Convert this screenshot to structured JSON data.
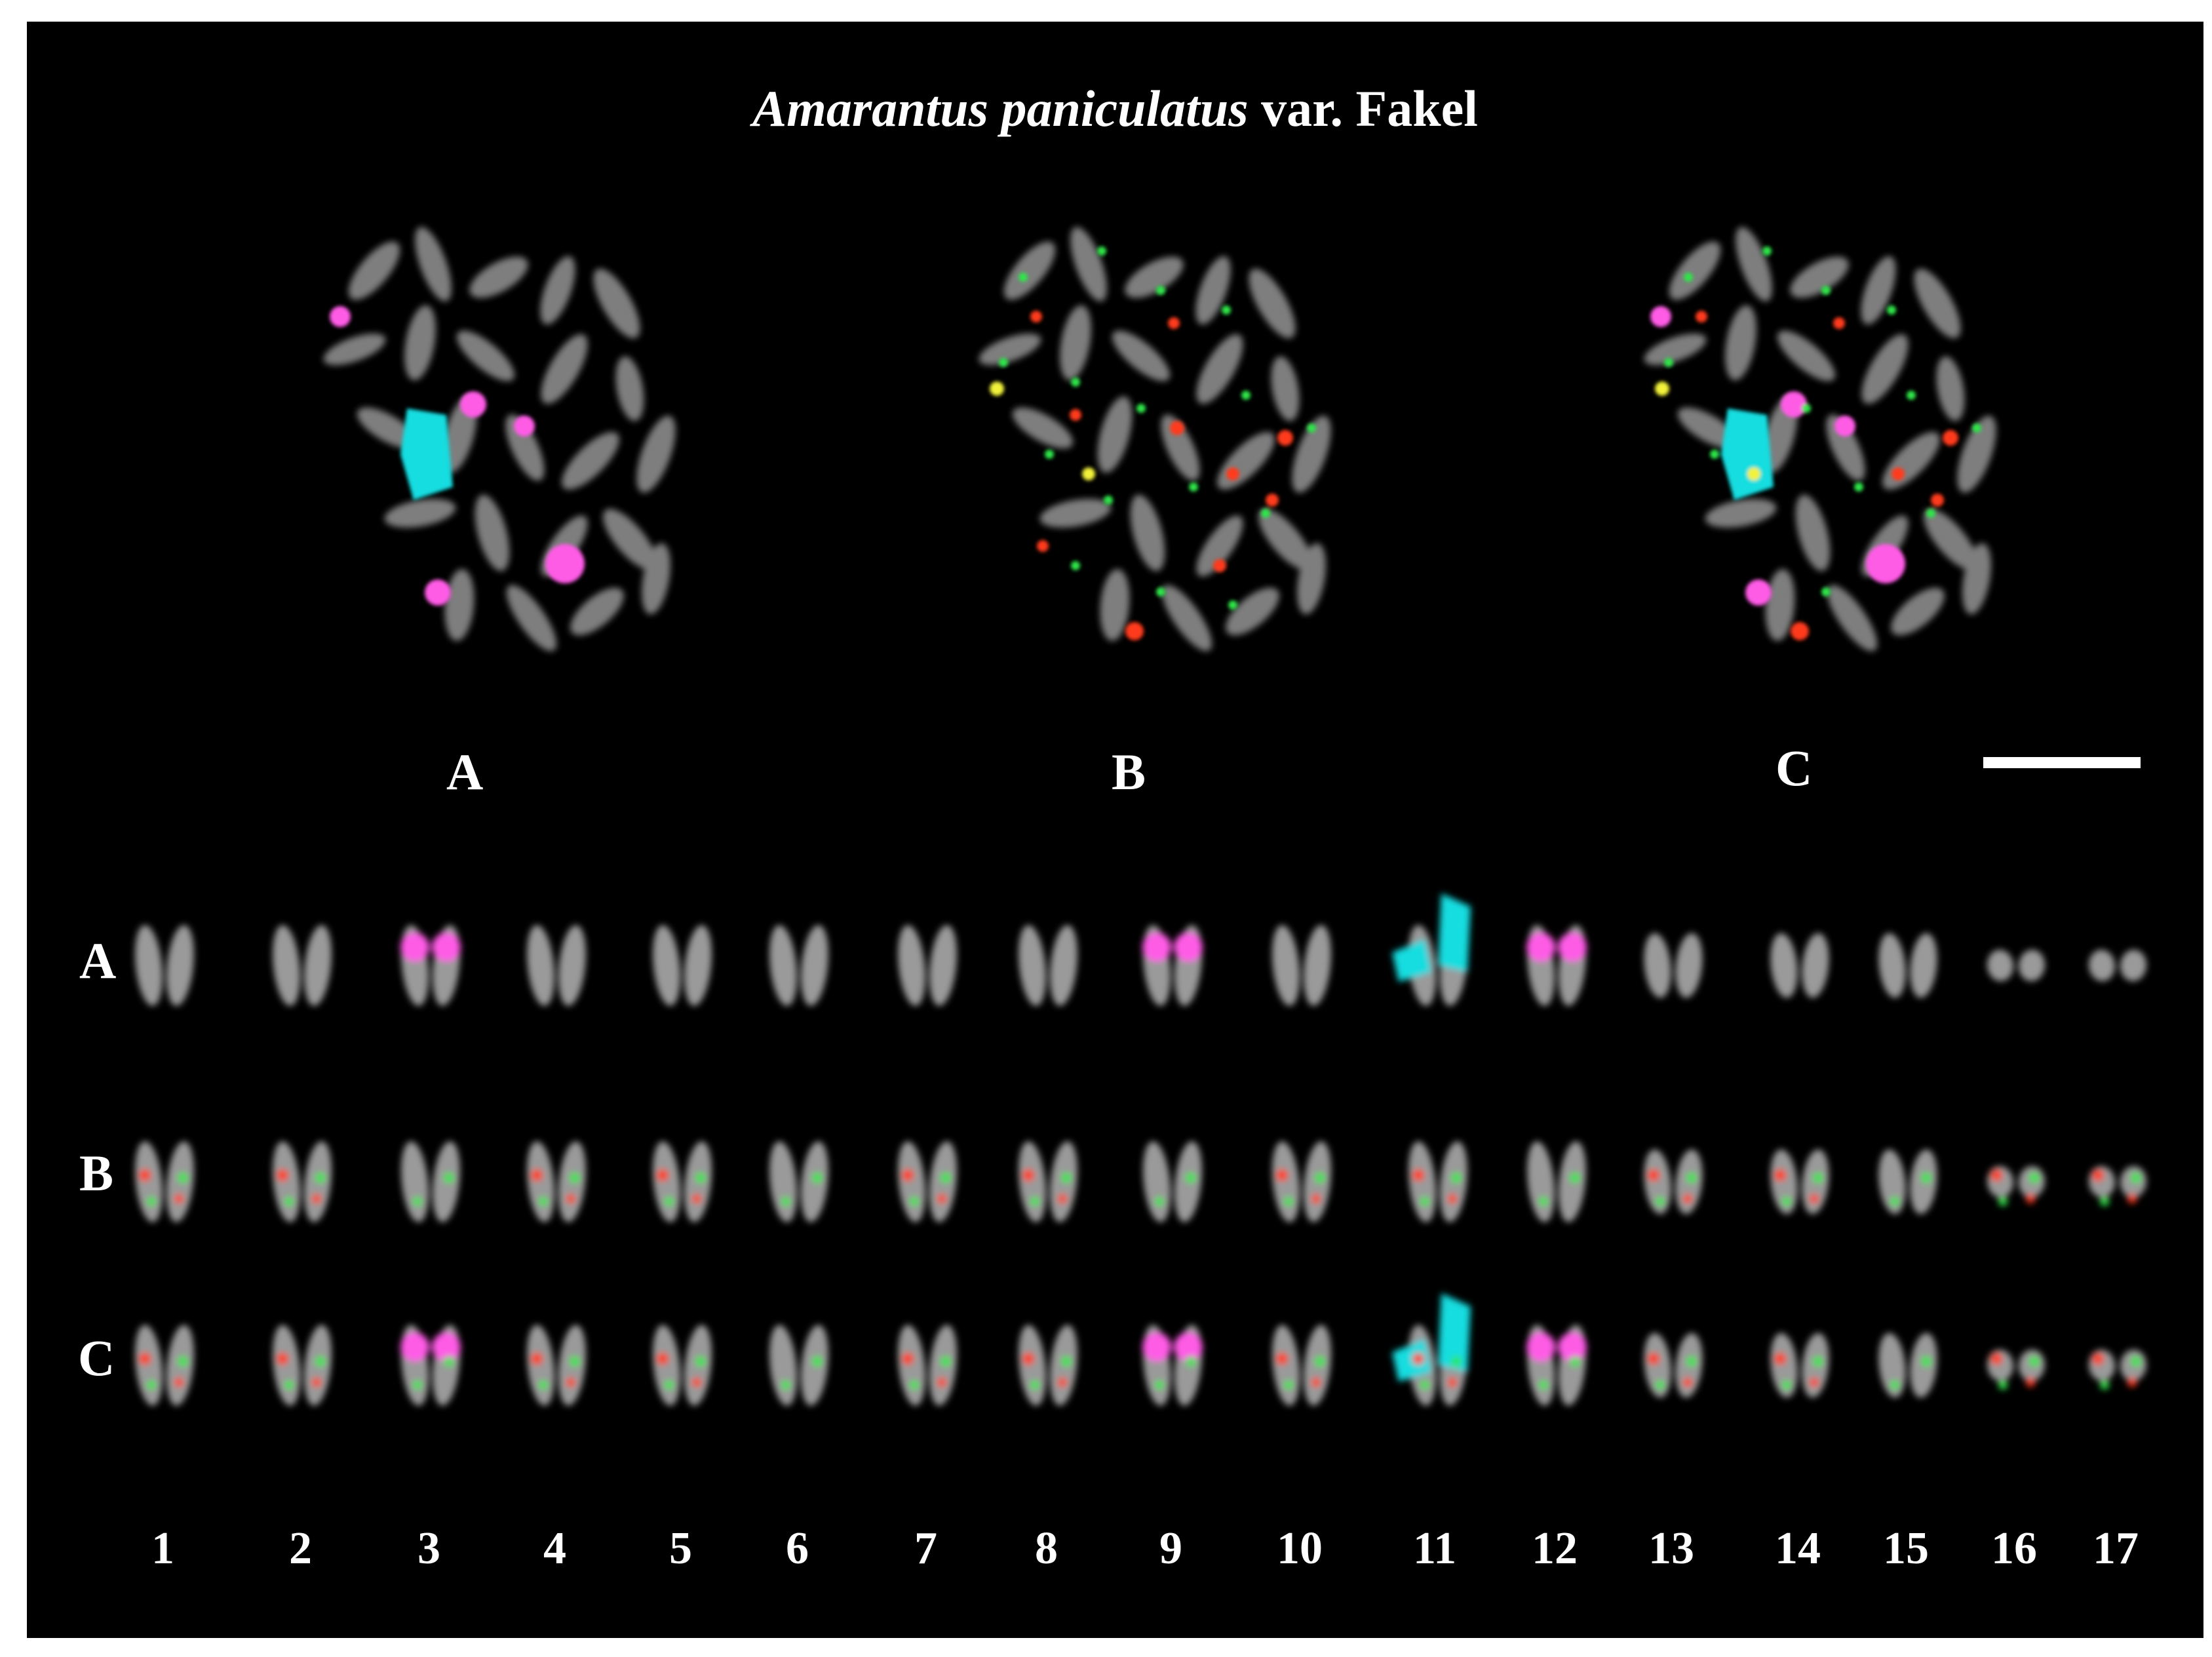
{
  "figure": {
    "title_species": "Amarantus paniculatus",
    "title_rest": " var. Fakel",
    "panel_labels": [
      "A",
      "B",
      "C"
    ],
    "row_labels": [
      "A",
      "B",
      "C"
    ],
    "chromosome_numbers": [
      "1",
      "2",
      "3",
      "4",
      "5",
      "6",
      "7",
      "8",
      "9",
      "10",
      "11",
      "12",
      "13",
      "14",
      "15",
      "16",
      "17"
    ],
    "colors": {
      "background": "#000000",
      "chromatin": "#9a9a9a",
      "probe_magenta": "#ff5ce6",
      "probe_cyan": "#18dde0",
      "probe_green": "#2ee64a",
      "probe_red": "#ff3b1f",
      "probe_yellow": "#f2f23a"
    },
    "magenta_pairs": [
      3,
      9,
      12
    ],
    "cyan_pairs": [
      11
    ]
  }
}
